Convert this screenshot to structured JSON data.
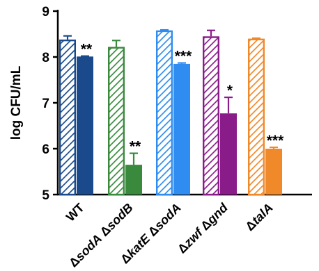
{
  "chart_data": {
    "type": "bar",
    "title": "",
    "xlabel": "",
    "ylabel": "log CFU/mL",
    "ylim": [
      5,
      9
    ],
    "yticks": [
      "5",
      "6",
      "7",
      "8",
      "9"
    ],
    "grid": false,
    "legend": "none",
    "categories": [
      {
        "name": "WT",
        "parts": [
          {
            "text": "WT",
            "italic": false
          }
        ]
      },
      {
        "name": "ΔsodA ΔsodB",
        "parts": [
          {
            "text": "Δ",
            "italic": false
          },
          {
            "text": "sodA",
            "italic": true
          },
          {
            "text": " Δ",
            "italic": false
          },
          {
            "text": "sodB",
            "italic": true
          }
        ]
      },
      {
        "name": "ΔkatE ΔsodA",
        "parts": [
          {
            "text": "Δ",
            "italic": false
          },
          {
            "text": "katE",
            "italic": true
          },
          {
            "text": " Δ",
            "italic": false
          },
          {
            "text": "sodA",
            "italic": true
          }
        ]
      },
      {
        "name": "Δzwf Δgnd",
        "parts": [
          {
            "text": "Δ",
            "italic": false
          },
          {
            "text": "zwf",
            "italic": true
          },
          {
            "text": " Δ",
            "italic": false
          },
          {
            "text": "gnd",
            "italic": true
          }
        ]
      },
      {
        "name": "ΔtalA",
        "parts": [
          {
            "text": "Δ",
            "italic": false
          },
          {
            "text": "talA",
            "italic": true
          }
        ]
      }
    ],
    "colors": [
      "#1a4a8c",
      "#3a8a3e",
      "#2f8cf0",
      "#8a1c8a",
      "#f0892a"
    ],
    "series": [
      {
        "values": [
          8.38,
          8.22,
          8.58,
          8.45,
          8.4
        ],
        "errors": [
          0.08,
          0.14,
          0.01,
          0.13,
          0.01
        ],
        "style": "hatched"
      },
      {
        "values": [
          8.01,
          5.65,
          7.85,
          6.77,
          6.0
        ],
        "errors": [
          0.01,
          0.25,
          0.02,
          0.35,
          0.03
        ],
        "style": "solid"
      }
    ],
    "significance": [
      "**",
      "**",
      "***",
      "*",
      "***"
    ]
  }
}
